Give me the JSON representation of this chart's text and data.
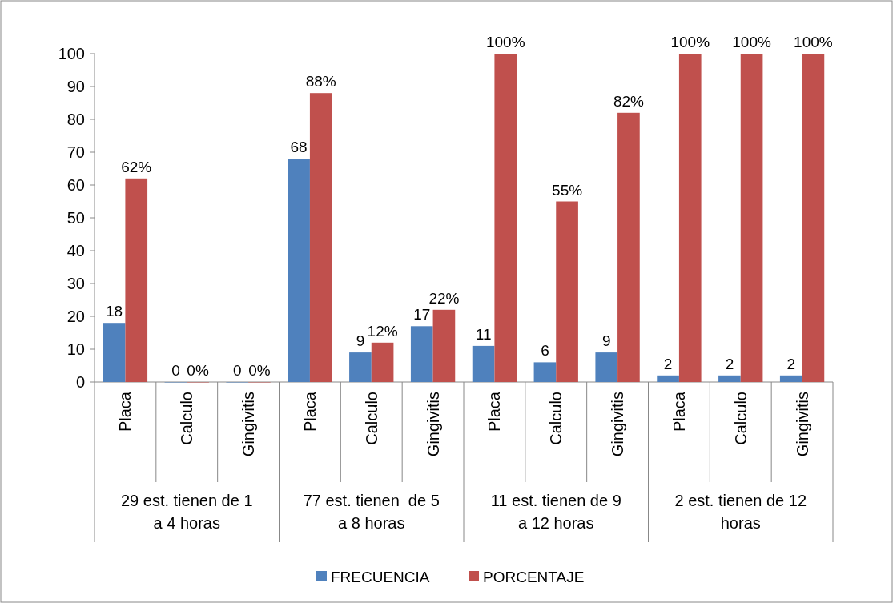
{
  "chart_data": {
    "type": "bar",
    "categories": [
      "Placa",
      "Calculo",
      "Gingivitis",
      "Placa",
      "Calculo",
      "Gingivitis",
      "Placa",
      "Calculo",
      "Gingivitis",
      "Placa",
      "Calculo",
      "Gingivitis"
    ],
    "series": [
      {
        "name": "FRECUENCIA",
        "color": "#4f81bd",
        "values": [
          18,
          0,
          0,
          68,
          9,
          17,
          11,
          6,
          9,
          2,
          2,
          2
        ],
        "value_labels": [
          "18",
          "0",
          "0",
          "68",
          "9",
          "17",
          "11",
          "6",
          "9",
          "2",
          "2",
          "2"
        ]
      },
      {
        "name": "PORCENTAJE",
        "color": "#c0504d",
        "values": [
          62,
          0,
          0,
          88,
          12,
          22,
          100,
          55,
          82,
          100,
          100,
          100
        ],
        "value_labels": [
          "62%",
          "0%",
          "0%",
          "88%",
          "12%",
          "22%",
          "100%",
          "55%",
          "82%",
          "100%",
          "100%",
          "100%"
        ]
      }
    ],
    "ylim": [
      0,
      100
    ],
    "yticks": [
      0,
      10,
      20,
      30,
      40,
      50,
      60,
      70,
      80,
      90,
      100
    ],
    "annotations": [
      "29 est. tienen de 1 a 4 horas",
      "77 est. tienen  de 5 a 8 horas",
      "11 est. tienen de 9 a 12 horas",
      "2 est. tienen de 12 horas"
    ],
    "legend": "bottom",
    "grid": false
  }
}
